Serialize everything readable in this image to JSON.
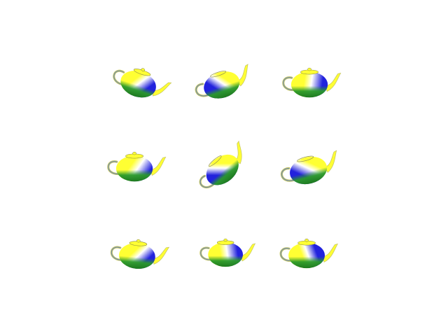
{
  "scene": {
    "background": "#ffffff",
    "colors": {
      "yellow": "#ffff33",
      "blue": "#2222dd",
      "green": "#2a9a2a",
      "highlight": "#ffffff",
      "handle": "#c8c860"
    },
    "teapots": [
      {
        "icon": "teapot-icon",
        "orientation": "tilted-left-spout-right",
        "shading": "yellow-blue-green"
      },
      {
        "icon": "teapot-icon",
        "orientation": "tilted-right-spout-right",
        "shading": "yellow-blue-green"
      },
      {
        "icon": "teapot-icon",
        "orientation": "upright-spout-right",
        "shading": "yellow-blue-green"
      },
      {
        "icon": "teapot-icon",
        "orientation": "upright-spout-right",
        "shading": "yellow-blue-green"
      },
      {
        "icon": "teapot-icon",
        "orientation": "steep-tilt-spout-up",
        "shading": "yellow-blue-green"
      },
      {
        "icon": "teapot-icon",
        "orientation": "tilted-right-spout-right",
        "shading": "yellow-blue-green"
      },
      {
        "icon": "teapot-icon",
        "orientation": "upright-spout-right",
        "shading": "yellow-blue-green"
      },
      {
        "icon": "teapot-icon",
        "orientation": "seen-from-above-spout-right",
        "shading": "yellow-blue-green"
      },
      {
        "icon": "teapot-icon",
        "orientation": "upright-spout-right",
        "shading": "yellow-blue-green"
      }
    ]
  }
}
